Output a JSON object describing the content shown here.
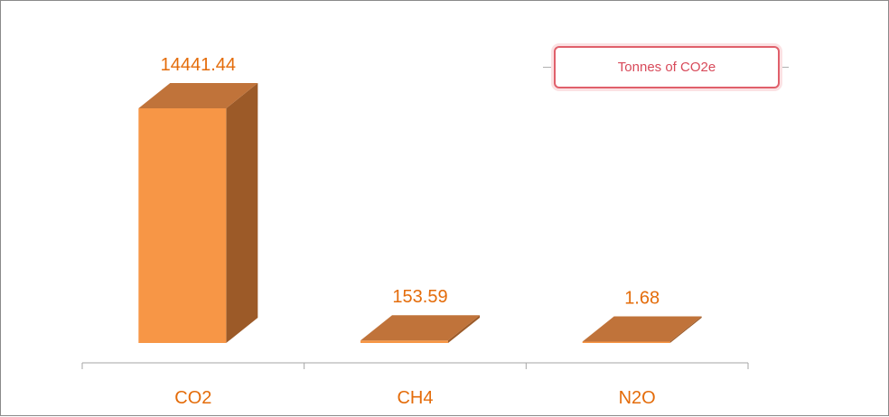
{
  "chart_data": {
    "type": "bar",
    "style": "3d-column",
    "categories": [
      "CO2",
      "CH4",
      "N2O"
    ],
    "values": [
      14441.44,
      153.59,
      1.68
    ],
    "value_labels": [
      "14441.44",
      "153.59",
      "1.68"
    ],
    "legend_label": "Tonnes of CO2e",
    "legend_placement": "top-right",
    "ylim": [
      0,
      14441.44
    ],
    "grid": false
  },
  "colors": {
    "bar_front": "#f79646",
    "bar_side": "#9c5a28",
    "bar_top": "#c0733a",
    "label_text": "#e46c0a",
    "axis": "#a6a6a6",
    "legend_border": "#e0606b",
    "legend_text": "#d84a5a"
  }
}
